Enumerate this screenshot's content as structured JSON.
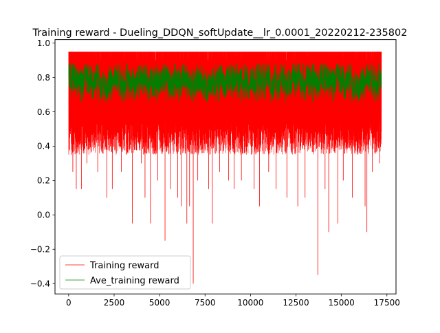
{
  "chart_data": {
    "type": "line",
    "title": "Training reward - Dueling_DDQN_softUpdate__lr_0.0001_20220212-235802",
    "xlabel": "",
    "ylabel": "",
    "xlim": [
      -750,
      18000
    ],
    "ylim": [
      -0.46,
      1.02
    ],
    "x_ticks": [
      0,
      2500,
      5000,
      7500,
      10000,
      12500,
      15000,
      17500
    ],
    "x_tick_labels": [
      "0",
      "2500",
      "5000",
      "7500",
      "10000",
      "12500",
      "15000",
      "17500"
    ],
    "y_ticks": [
      -0.4,
      -0.2,
      0.0,
      0.2,
      0.4,
      0.6,
      0.8,
      1.0
    ],
    "y_tick_labels": [
      "−0.4",
      "−0.2",
      "0.0",
      "0.2",
      "0.4",
      "0.6",
      "0.8",
      "1.0"
    ],
    "x_range": [
      0,
      17200
    ],
    "legend_placement": "lower-left",
    "grid": false,
    "series": [
      {
        "name": "Training reward",
        "color": "#ff0000",
        "upper_envelope": 0.95,
        "typical_lower": 0.55,
        "dips": [
          [
            30,
            0.65
          ],
          [
            150,
            0.35
          ],
          [
            230,
            0.25
          ],
          [
            420,
            0.15
          ],
          [
            700,
            0.15
          ],
          [
            1000,
            0.3
          ],
          [
            1600,
            0.25
          ],
          [
            2100,
            0.1
          ],
          [
            2400,
            0.15
          ],
          [
            2900,
            0.25
          ],
          [
            3500,
            -0.05
          ],
          [
            4000,
            0.3
          ],
          [
            4200,
            0.1
          ],
          [
            4500,
            -0.05
          ],
          [
            4900,
            0.2
          ],
          [
            5300,
            -0.15
          ],
          [
            5600,
            0.15
          ],
          [
            6000,
            0.1
          ],
          [
            6200,
            0.05
          ],
          [
            6500,
            -0.05
          ],
          [
            6650,
            0.05
          ],
          [
            6850,
            -0.4
          ],
          [
            7100,
            0.2
          ],
          [
            7700,
            0.15
          ],
          [
            7900,
            -0.05
          ],
          [
            8300,
            0.25
          ],
          [
            8800,
            0.2
          ],
          [
            9100,
            0.15
          ],
          [
            9500,
            0.2
          ],
          [
            10200,
            0.15
          ],
          [
            10500,
            0.05
          ],
          [
            11000,
            0.25
          ],
          [
            11400,
            0.15
          ],
          [
            12000,
            0.1
          ],
          [
            12600,
            0.05
          ],
          [
            13000,
            0.1
          ],
          [
            13700,
            -0.35
          ],
          [
            14100,
            0.15
          ],
          [
            14300,
            -0.1
          ],
          [
            14800,
            -0.05
          ],
          [
            15100,
            0.2
          ],
          [
            15600,
            0.1
          ],
          [
            16300,
            0.05
          ],
          [
            16400,
            -0.1
          ],
          [
            16700,
            0.25
          ],
          [
            17100,
            0.3
          ]
        ]
      },
      {
        "name": "Ave_training reward",
        "color": "#008000",
        "mean": 0.78,
        "band": [
          0.65,
          0.88
        ]
      }
    ]
  }
}
